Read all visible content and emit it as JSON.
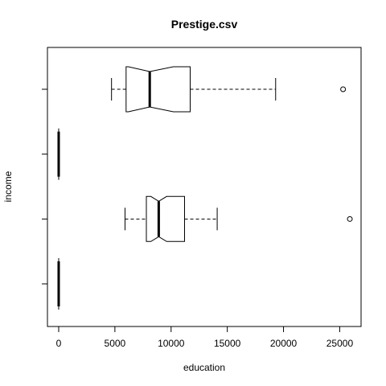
{
  "chart_data": {
    "type": "boxplot",
    "title": "Prestige.csv",
    "xlabel": "education",
    "ylabel": "income",
    "orientation": "horizontal",
    "notched": true,
    "xlim": [
      -1000,
      26900
    ],
    "x_ticks": [
      0,
      5000,
      10000,
      15000,
      20000,
      25000
    ],
    "y_ticks": [
      1,
      2,
      3,
      4
    ],
    "grid": false,
    "legend": "none",
    "boxes": [
      {
        "position": 1,
        "whisker_low": 0,
        "q1": 0,
        "median": 0,
        "q3": 0,
        "whisker_high": 0,
        "notch_low": 0,
        "notch_high": 0,
        "outliers": []
      },
      {
        "position": 2,
        "whisker_low": 5900,
        "q1": 7800,
        "median": 8900,
        "q3": 11200,
        "whisker_high": 14100,
        "notch_low": 8200,
        "notch_high": 9600,
        "outliers": [
          25900
        ]
      },
      {
        "position": 3,
        "whisker_low": 0,
        "q1": 0,
        "median": 0,
        "q3": 0,
        "whisker_high": 0,
        "notch_low": 0,
        "notch_high": 0,
        "outliers": []
      },
      {
        "position": 4,
        "whisker_low": 4700,
        "q1": 6000,
        "median": 8100,
        "q3": 11700,
        "whisker_high": 19300,
        "notch_low": 6200,
        "notch_high": 10200,
        "outliers": [
          25300
        ]
      }
    ]
  }
}
